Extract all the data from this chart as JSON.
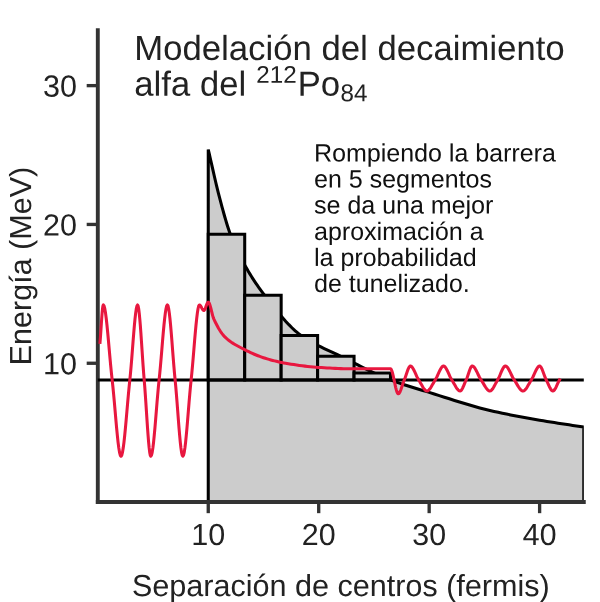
{
  "chart_data": {
    "type": "line",
    "title": "Modelación del decaimiento alfa del $^{212}$Po$_{84}$",
    "xlabel": "Separación de centros (fermis)",
    "ylabel": "Energía (MeV)",
    "annotations": [
      "Rompiendo la barrera\nen 5 segmentos\nse da una mejor\naproximación a\nla probabilidad\nde tunelizado."
    ],
    "xlim": [
      0,
      44
    ],
    "ylim": [
      0,
      34
    ],
    "xticks": [
      10,
      20,
      30,
      40
    ],
    "yticks": [
      10,
      20,
      30
    ],
    "grid": false,
    "legend": false,
    "ref_lines": [
      {
        "axis": "y",
        "value": 8.8,
        "label": null,
        "color": "#000000"
      }
    ],
    "series": [
      {
        "type": "area",
        "color": "#cccccc",
        "x": [
          10,
          11,
          12,
          13.5,
          15.1,
          18.4,
          22,
          26.5,
          30,
          35.5,
          40,
          44
        ],
        "values": [
          25.4,
          22,
          19.3,
          16.8,
          14.9,
          12.0,
          10.5,
          8.8,
          7.9,
          6.6,
          5.9,
          5.4
        ]
      },
      {
        "type": "bar",
        "color": "#cccccc",
        "x": [
          11.65,
          14.95,
          18.25,
          21.55,
          24.85
        ],
        "values": [
          10.5,
          6.1,
          3.2,
          1.7,
          0.5
        ],
        "base": [
          8.8,
          8.8,
          8.8,
          8.8,
          8.8
        ]
      },
      {
        "color": "#e8173f",
        "x": [
          0.2,
          0.5,
          1.3,
          2.1,
          2.9,
          3.6,
          4.2,
          4.8,
          5.55,
          6.3,
          7.0,
          7.7,
          8.45,
          9.2,
          9.6,
          10.0,
          10.5,
          11.5,
          13,
          15,
          17,
          20,
          23,
          26.5,
          27.2,
          27.75,
          28.3,
          29.05,
          29.8,
          30.55,
          31.3,
          32.05,
          32.8,
          33.35,
          33.9,
          34.7,
          35.5,
          36.2,
          36.9,
          37.7,
          38.5,
          39.25,
          40.0,
          40.6,
          41.2,
          41.8
        ],
        "values": [
          11.5,
          14.2,
          8.8,
          3.3,
          8.8,
          14.2,
          8.8,
          3.3,
          8.8,
          14.2,
          8.8,
          3.3,
          8.8,
          14.2,
          13.8,
          14.4,
          13.2,
          11.9,
          11.1,
          10.4,
          10.0,
          9.7,
          9.6,
          9.6,
          7.8,
          8.8,
          9.8,
          8.8,
          8.0,
          8.8,
          9.8,
          8.8,
          8.0,
          8.8,
          9.8,
          8.8,
          8.0,
          8.8,
          9.8,
          8.8,
          8.0,
          8.8,
          9.8,
          8.8,
          8.0,
          8.8
        ]
      }
    ]
  }
}
